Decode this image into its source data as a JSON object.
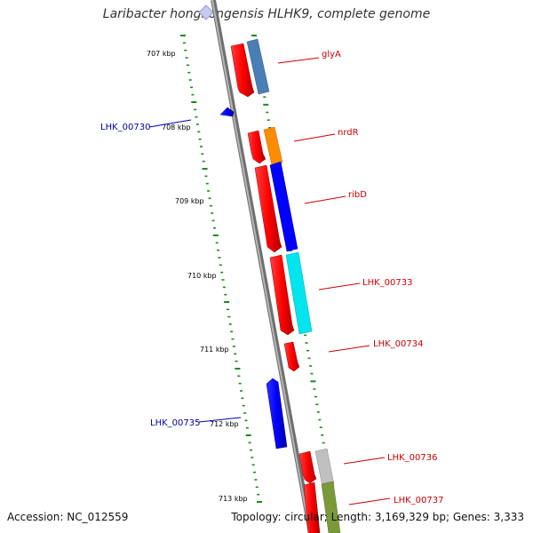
{
  "title": "Laribacter hongkongensis HLHK9, complete genome",
  "footer": {
    "accession": "Accession: NC_012559",
    "summary": "Topology: circular; Length: 3,169,329 bp; Genes: 3,333"
  },
  "scale_labels": [
    "707 kbp",
    "708 kbp",
    "709 kbp",
    "710 kbp",
    "711 kbp",
    "712 kbp",
    "713 kbp"
  ],
  "genes": [
    {
      "name": "glyA",
      "strand": "forward",
      "color": "#ff0000"
    },
    {
      "name": "LHK_00730",
      "strand": "reverse",
      "color": "#0000ff"
    },
    {
      "name": "nrdR",
      "strand": "forward",
      "color": "#ff0000"
    },
    {
      "name": "ribD",
      "strand": "forward",
      "color": "#ff0000"
    },
    {
      "name": "LHK_00733",
      "strand": "forward",
      "color": "#ff0000"
    },
    {
      "name": "LHK_00734",
      "strand": "forward",
      "color": "#ff0000"
    },
    {
      "name": "LHK_00735",
      "strand": "reverse",
      "color": "#0000ff"
    },
    {
      "name": "LHK_00736",
      "strand": "forward",
      "color": "#ff0000"
    },
    {
      "name": "LHK_00737",
      "strand": "forward",
      "color": "#ff0000"
    }
  ],
  "category_colors": {
    "glyA": "#4a7fb5",
    "nrdR": "#ff8c00",
    "ribD": "#0000ff",
    "LHK_00733": "#00e5ee",
    "LHK_00736": "#c0c0c0",
    "LHK_00737": "#7a9a3a"
  },
  "colors": {
    "backbone": "#8c8c8c",
    "tick": "#1a8a1a",
    "forward_label": "#cc0000",
    "reverse_label": "#0000aa"
  }
}
